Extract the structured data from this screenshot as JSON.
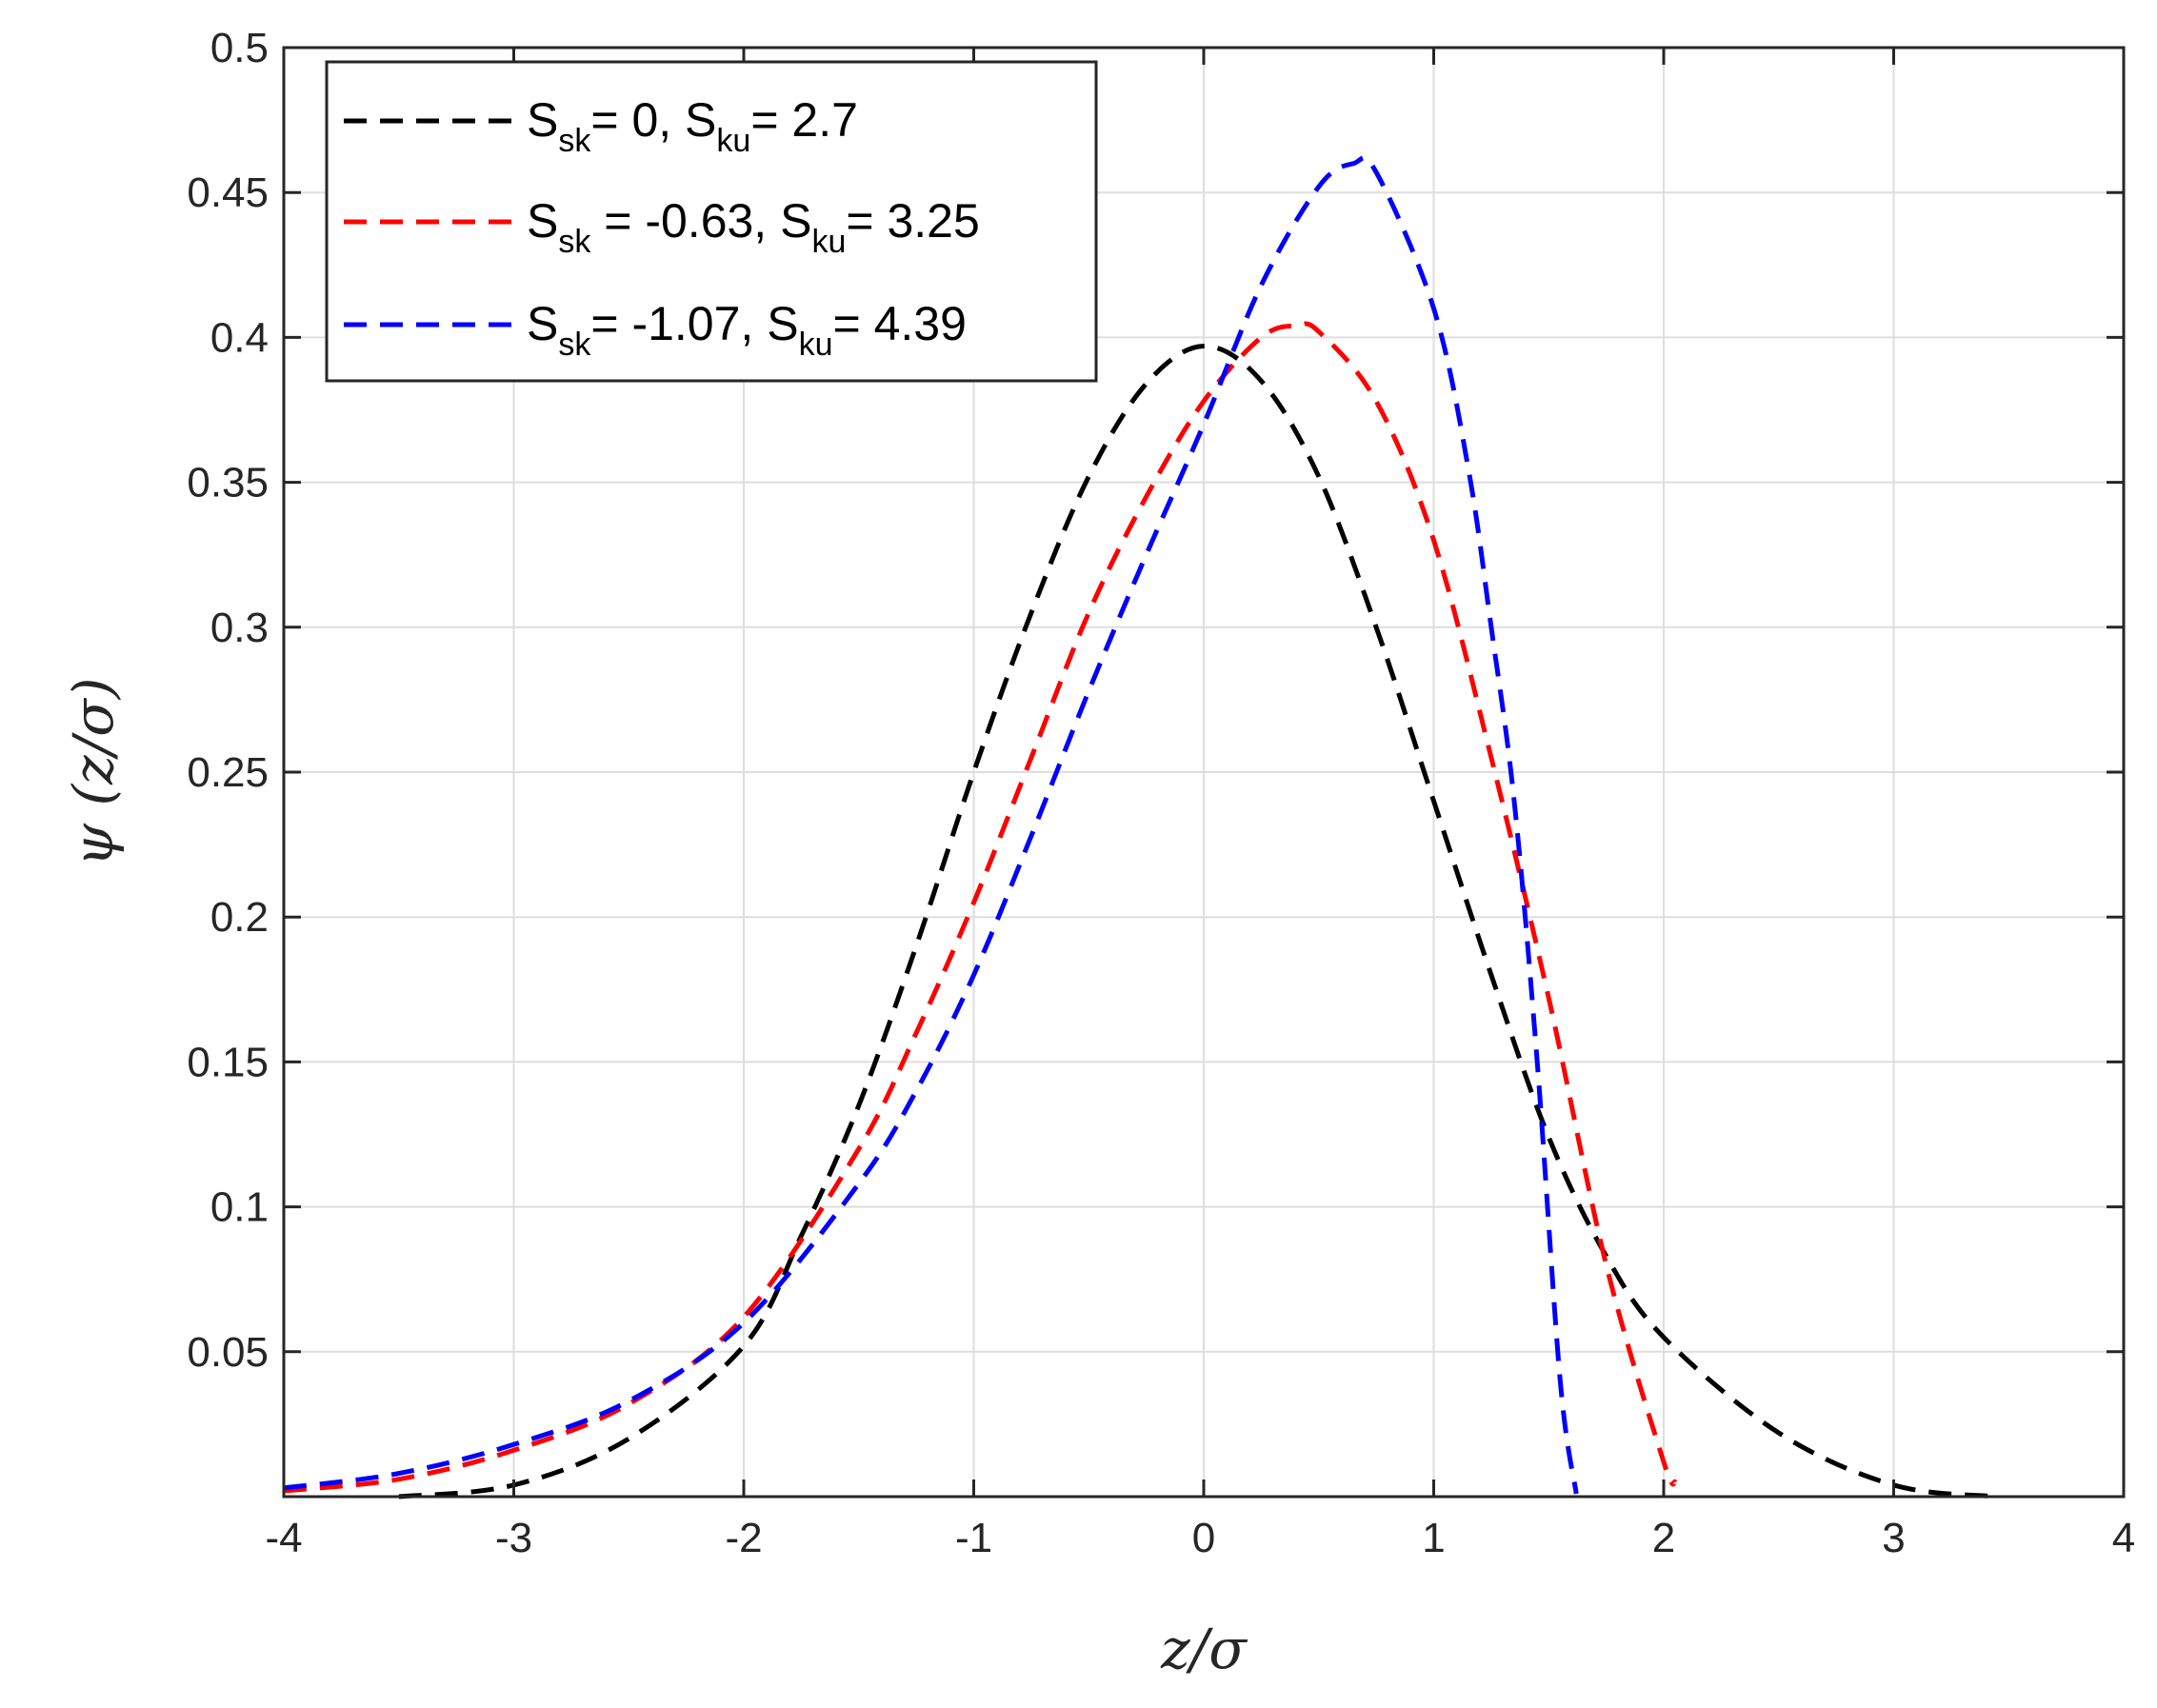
{
  "chart_data": {
    "type": "line",
    "title": "",
    "xlabel": "z/σ",
    "ylabel": "ψ (z/σ)",
    "xlim": [
      -4,
      4
    ],
    "ylim": [
      0,
      0.5
    ],
    "grid": true,
    "legend_position": "top-left",
    "x_ticks": [
      "-4",
      "-3",
      "-2",
      "-1",
      "0",
      "1",
      "2",
      "3",
      "4"
    ],
    "y_ticks": [
      "0.05",
      "0.1",
      "0.15",
      "0.2",
      "0.25",
      "0.3",
      "0.35",
      "0.4",
      "0.45",
      "0.5"
    ],
    "series": [
      {
        "name": "S_sk = 0, S_ku = 2.7",
        "legend_parts": [
          "S",
          "sk",
          "= 0, S",
          "ku",
          "= 2.7"
        ],
        "color": "#000000",
        "x": [
          -3.5,
          -3.0,
          -2.5,
          -2.0,
          -1.75,
          -1.5,
          -1.25,
          -1.0,
          -0.75,
          -0.5,
          -0.25,
          0.0,
          0.25,
          0.5,
          0.75,
          1.0,
          1.25,
          1.5,
          1.75,
          2.0,
          2.5,
          3.0,
          3.45
        ],
        "y": [
          0.0,
          0.004,
          0.02,
          0.052,
          0.09,
          0.135,
          0.19,
          0.25,
          0.305,
          0.352,
          0.384,
          0.397,
          0.385,
          0.352,
          0.3,
          0.24,
          0.18,
          0.124,
          0.083,
          0.055,
          0.022,
          0.004,
          0.0
        ]
      },
      {
        "name": "S_sk = -0.63, S_ku = 3.25",
        "legend_parts": [
          "S",
          "sk",
          " = -0.63, S",
          "ku",
          "= 3.25"
        ],
        "color": "#ff0000",
        "x": [
          -4.0,
          -3.5,
          -3.0,
          -2.5,
          -2.0,
          -1.5,
          -1.25,
          -1.0,
          -0.75,
          -0.5,
          -0.25,
          0.0,
          0.25,
          0.4,
          0.5,
          0.75,
          1.0,
          1.25,
          1.5,
          1.75,
          2.0,
          2.05
        ],
        "y": [
          0.002,
          0.006,
          0.016,
          0.032,
          0.062,
          0.12,
          0.16,
          0.205,
          0.255,
          0.305,
          0.345,
          0.378,
          0.4,
          0.404,
          0.402,
          0.378,
          0.33,
          0.255,
          0.172,
          0.08,
          0.012,
          0.005
        ]
      },
      {
        "name": "S_sk = -1.07, S_ku = 4.39",
        "legend_parts": [
          "S",
          "sk",
          "= -1.07, S",
          "ku",
          "= 4.39"
        ],
        "color": "#0000ff",
        "x": [
          -4.0,
          -3.5,
          -3.0,
          -2.5,
          -2.0,
          -1.5,
          -1.25,
          -1.0,
          -0.75,
          -0.5,
          -0.25,
          0.0,
          0.25,
          0.5,
          0.65,
          0.75,
          1.0,
          1.15,
          1.25,
          1.35,
          1.45,
          1.55,
          1.62
        ],
        "y": [
          0.003,
          0.008,
          0.018,
          0.033,
          0.06,
          0.108,
          0.14,
          0.18,
          0.228,
          0.278,
          0.325,
          0.37,
          0.418,
          0.452,
          0.46,
          0.457,
          0.41,
          0.355,
          0.3,
          0.24,
          0.15,
          0.04,
          0.001
        ]
      }
    ]
  }
}
